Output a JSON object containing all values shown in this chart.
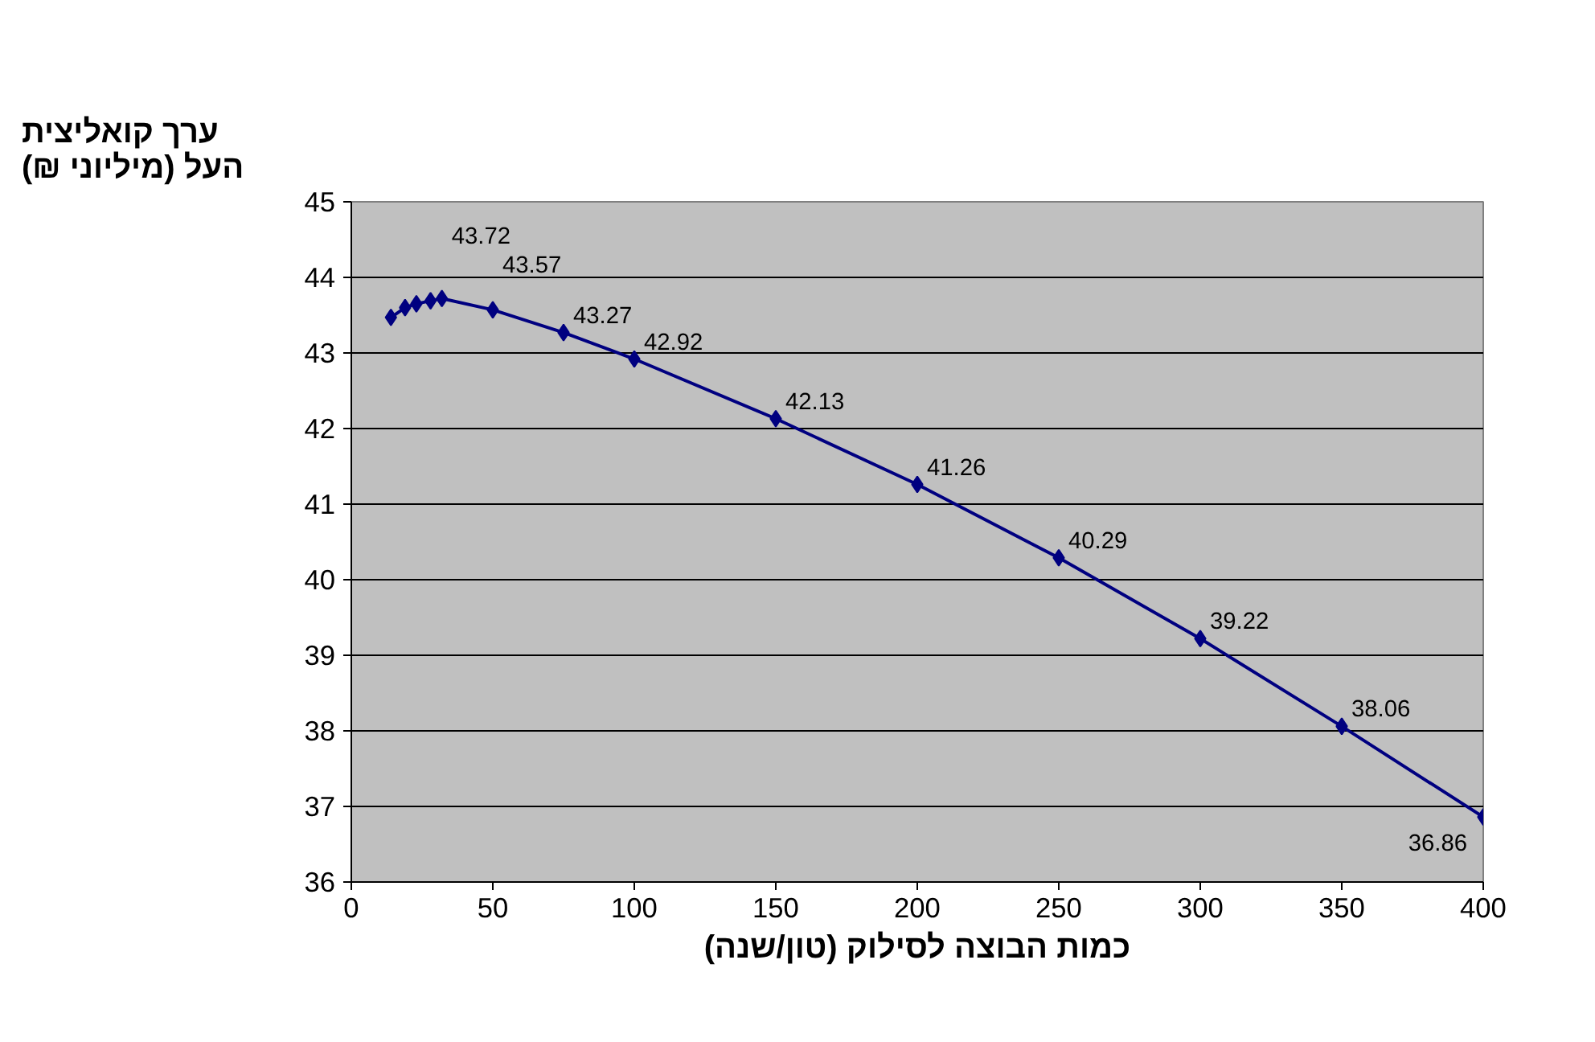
{
  "chart_data": {
    "type": "line",
    "xlabel": "כמות הבוצה לסילוק (טון/שנה)",
    "ylabel": "ערך קואליצית\nהעל (מיליוני ₪)",
    "x": [
      14,
      19,
      23,
      28,
      32,
      50,
      75,
      100,
      150,
      200,
      250,
      300,
      350,
      400
    ],
    "series": [
      {
        "color": "#000080",
        "values": [
          43.47,
          43.6,
          43.65,
          43.69,
          43.72,
          43.57,
          43.27,
          42.92,
          42.13,
          41.26,
          40.29,
          39.22,
          38.06,
          36.86
        ],
        "value_labels": [
          null,
          null,
          null,
          null,
          "43.72",
          "43.57",
          "43.27",
          "42.92",
          "42.13",
          "41.26",
          "40.29",
          "39.22",
          "38.06",
          "36.86"
        ]
      }
    ],
    "xlim": [
      0,
      400
    ],
    "xticks": [
      0,
      50,
      100,
      150,
      200,
      250,
      300,
      350,
      400
    ],
    "ylim": [
      36,
      45
    ],
    "yticks": [
      36,
      37,
      38,
      39,
      40,
      41,
      42,
      43,
      44,
      45
    ],
    "grid": "y",
    "marker": "diamond",
    "line_style": "solid"
  }
}
